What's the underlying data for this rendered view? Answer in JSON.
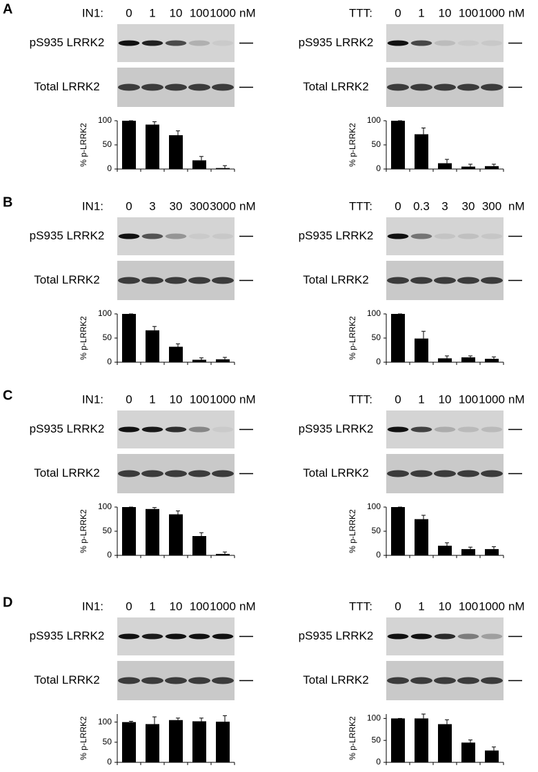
{
  "panel_labels": [
    "A",
    "B",
    "C",
    "D"
  ],
  "blot_labels": [
    "pS935 LRRK2",
    "Total LRRK2"
  ],
  "unit": "nM",
  "chart_data": [
    {
      "type": "bar",
      "treatment": "IN1:",
      "categories": [
        "0",
        "1",
        "10",
        "100",
        "1000"
      ],
      "ylabel": "% p-LRRK2",
      "values": [
        100,
        92,
        70,
        18,
        2
      ],
      "errors": [
        0,
        6,
        9,
        8,
        5
      ],
      "ylim": [
        0,
        100
      ],
      "yticks": [
        0,
        50,
        100
      ],
      "color": "#000000"
    },
    {
      "type": "bar",
      "treatment": "TTT:",
      "categories": [
        "0",
        "1",
        "10",
        "100",
        "1000"
      ],
      "ylabel": "% p-LRRK2",
      "values": [
        100,
        72,
        12,
        5,
        6
      ],
      "errors": [
        0,
        13,
        8,
        5,
        4
      ],
      "ylim": [
        0,
        100
      ],
      "yticks": [
        0,
        50,
        100
      ],
      "color": "#000000"
    },
    {
      "type": "bar",
      "treatment": "IN1:",
      "categories": [
        "0",
        "3",
        "30",
        "300",
        "3000"
      ],
      "ylabel": "% p-LRRK2",
      "values": [
        100,
        66,
        32,
        5,
        6
      ],
      "errors": [
        0,
        8,
        6,
        4,
        4
      ],
      "ylim": [
        0,
        100
      ],
      "yticks": [
        0,
        50,
        100
      ],
      "color": "#000000"
    },
    {
      "type": "bar",
      "treatment": "TTT:",
      "categories": [
        "0",
        "0.3",
        "3",
        "30",
        "300"
      ],
      "ylabel": "% p-LRRK2",
      "values": [
        100,
        49,
        8,
        10,
        7
      ],
      "errors": [
        0,
        15,
        5,
        3,
        4
      ],
      "ylim": [
        0,
        100
      ],
      "yticks": [
        0,
        50,
        100
      ],
      "color": "#000000"
    },
    {
      "type": "bar",
      "treatment": "IN1:",
      "categories": [
        "0",
        "1",
        "10",
        "100",
        "1000"
      ],
      "ylabel": "% p-LRRK2",
      "values": [
        100,
        96,
        85,
        40,
        3
      ],
      "errors": [
        0,
        3,
        7,
        7,
        4
      ],
      "ylim": [
        0,
        100
      ],
      "yticks": [
        0,
        50,
        100
      ],
      "color": "#000000"
    },
    {
      "type": "bar",
      "treatment": "TTT:",
      "categories": [
        "0",
        "1",
        "10",
        "100",
        "1000"
      ],
      "ylabel": "% p-LRRK2",
      "values": [
        100,
        75,
        20,
        13,
        13
      ],
      "errors": [
        0,
        8,
        6,
        4,
        5
      ],
      "ylim": [
        0,
        100
      ],
      "yticks": [
        0,
        50,
        100
      ],
      "color": "#000000"
    },
    {
      "type": "bar",
      "treatment": "IN1:",
      "categories": [
        "0",
        "1",
        "10",
        "100",
        "1000"
      ],
      "ylabel": "% p-LRRK2",
      "values": [
        100,
        95,
        105,
        102,
        101
      ],
      "errors": [
        2,
        18,
        5,
        8,
        15
      ],
      "ylim": [
        0,
        120
      ],
      "yticks": [
        0,
        50,
        100
      ],
      "color": "#000000"
    },
    {
      "type": "bar",
      "treatment": "TTT:",
      "categories": [
        "0",
        "1",
        "10",
        "100",
        "1000"
      ],
      "ylabel": "% p-LRRK2",
      "values": [
        100,
        100,
        87,
        45,
        27
      ],
      "errors": [
        0,
        10,
        10,
        6,
        8
      ],
      "ylim": [
        0,
        110
      ],
      "yticks": [
        0,
        50,
        100
      ],
      "color": "#000000"
    }
  ]
}
